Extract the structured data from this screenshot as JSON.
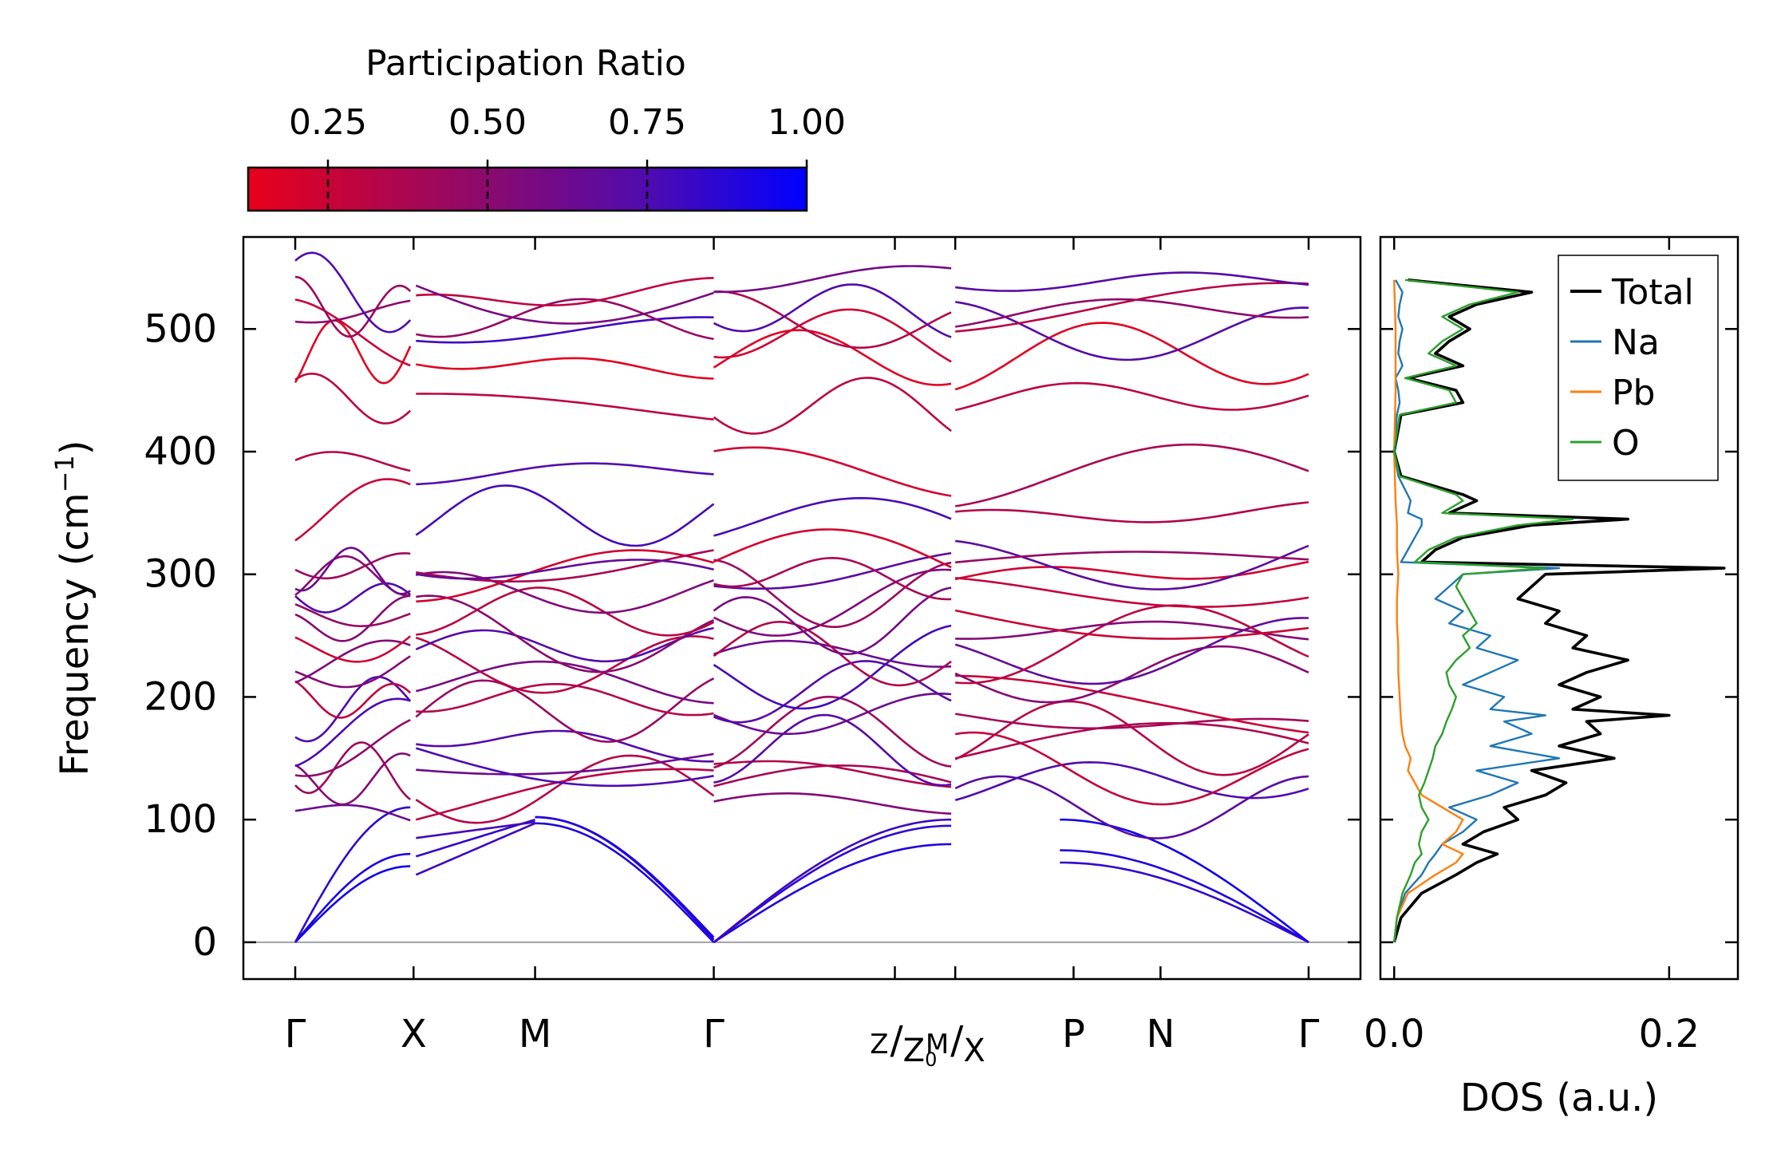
{
  "chart_data": [
    {
      "type": "line",
      "title": "",
      "xlabel": "",
      "ylabel": "Frequency (cm",
      "ylabel_unit_power": "−1",
      "ylabel_close": ")",
      "ylim": [
        -30,
        575
      ],
      "yticks": [
        0,
        100,
        200,
        300,
        400,
        500
      ],
      "ytick_labels": [
        "0",
        "100",
        "200",
        "300",
        "400",
        "500"
      ],
      "segments": [
        {
          "from": "Γ",
          "to": "X",
          "t0": 0.0,
          "t1": 0.143
        },
        {
          "from": "X",
          "to": "Γ",
          "via": "M",
          "t0": 0.15,
          "t1": 0.52
        },
        {
          "from": "Γ",
          "to": "Z/Z0",
          "t0": 0.52,
          "t1": 0.815
        },
        {
          "from": "M/X",
          "to": "Γ",
          "via": "P, N",
          "t0": 0.82,
          "t1": 1.0
        }
      ],
      "high_symmetry_points": [
        {
          "label": "Γ",
          "t": 0.0
        },
        {
          "label": "X",
          "t": 0.147
        },
        {
          "label": "M",
          "t": 0.298
        },
        {
          "label": "Γ",
          "t": 0.52
        },
        {
          "label": "Z",
          "sub": "Z",
          "sub_index": "0",
          "t": 0.745
        },
        {
          "label": "M",
          "sub": "X",
          "t": 0.82
        },
        {
          "label": "P",
          "t": 0.967
        },
        {
          "label": "N",
          "t": 1.075
        },
        {
          "label": "Γ",
          "t": 1.259
        }
      ],
      "colorbar": {
        "label": "Participation Ratio",
        "range": [
          0.125,
          1.0
        ],
        "ticks": [
          0.25,
          0.5,
          0.75,
          1.0
        ],
        "tick_labels": [
          "0.25",
          "0.50",
          "0.75",
          "1.00"
        ],
        "color_low": "#e8001b",
        "color_mid": "#8a0a6e",
        "color_high": "#0000ff"
      },
      "acoustic_branches_max_cm1": [
        62,
        72,
        110,
        97,
        100,
        98
      ],
      "optical_branch_band_centers_cm1": [
        110,
        128,
        145,
        158,
        170,
        185,
        200,
        215,
        228,
        240,
        255,
        270,
        285,
        296,
        305,
        310,
        345,
        380,
        442,
        475,
        500,
        510,
        520,
        537
      ]
    },
    {
      "type": "line",
      "xlabel": "DOS (a.u.)",
      "ylabel": "",
      "xlim": [
        -0.01,
        0.25
      ],
      "xticks": [
        0.0,
        0.2
      ],
      "xtick_labels": [
        "0.0",
        "0.2"
      ],
      "ylim": [
        -30,
        575
      ],
      "legend": {
        "position": "top-right"
      },
      "series": [
        {
          "name": "Total",
          "color": "#000000",
          "freq": [
            0,
            20,
            40,
            55,
            65,
            72,
            80,
            90,
            100,
            110,
            120,
            130,
            140,
            150,
            160,
            170,
            180,
            185,
            190,
            200,
            210,
            220,
            230,
            240,
            250,
            260,
            270,
            280,
            290,
            300,
            305,
            310,
            320,
            330,
            340,
            345,
            350,
            360,
            365,
            380,
            400,
            430,
            440,
            450,
            460,
            470,
            480,
            490,
            500,
            510,
            520,
            530,
            540
          ],
          "dos": [
            0,
            0.005,
            0.02,
            0.045,
            0.06,
            0.075,
            0.05,
            0.065,
            0.09,
            0.08,
            0.11,
            0.125,
            0.1,
            0.16,
            0.12,
            0.15,
            0.14,
            0.2,
            0.13,
            0.15,
            0.12,
            0.14,
            0.17,
            0.13,
            0.14,
            0.11,
            0.12,
            0.09,
            0.1,
            0.11,
            0.24,
            0.02,
            0.03,
            0.05,
            0.1,
            0.17,
            0.04,
            0.06,
            0.05,
            0.005,
            0.0,
            0.005,
            0.05,
            0.045,
            0.01,
            0.05,
            0.03,
            0.04,
            0.055,
            0.04,
            0.06,
            0.1,
            0.01
          ]
        },
        {
          "name": "Na",
          "color": "#1f77b4",
          "freq": [
            0,
            20,
            40,
            55,
            65,
            72,
            80,
            90,
            100,
            110,
            120,
            130,
            140,
            150,
            160,
            170,
            180,
            185,
            190,
            200,
            210,
            220,
            230,
            240,
            250,
            260,
            270,
            280,
            290,
            300,
            305,
            310,
            320,
            330,
            340,
            345,
            350,
            360,
            380,
            400,
            430,
            440,
            450,
            460,
            470,
            480,
            490,
            500,
            510,
            520,
            530,
            540
          ],
          "dos": [
            0,
            0.002,
            0.008,
            0.02,
            0.025,
            0.03,
            0.035,
            0.05,
            0.06,
            0.04,
            0.07,
            0.09,
            0.06,
            0.12,
            0.07,
            0.1,
            0.08,
            0.11,
            0.07,
            0.08,
            0.05,
            0.07,
            0.09,
            0.06,
            0.07,
            0.04,
            0.05,
            0.03,
            0.04,
            0.05,
            0.12,
            0.005,
            0.01,
            0.015,
            0.02,
            0.02,
            0.01,
            0.012,
            0.003,
            0.0,
            0.002,
            0.004,
            0.003,
            0.001,
            0.006,
            0.003,
            0.004,
            0.006,
            0.003,
            0.004,
            0.006,
            0.001
          ]
        },
        {
          "name": "Pb",
          "color": "#ff7f0e",
          "freq": [
            0,
            20,
            40,
            55,
            65,
            72,
            80,
            90,
            100,
            110,
            120,
            130,
            140,
            150,
            160,
            170,
            180,
            200,
            220,
            240,
            260,
            280,
            300,
            320,
            340,
            360,
            400,
            450,
            500,
            540
          ],
          "dos": [
            0,
            0.002,
            0.01,
            0.03,
            0.045,
            0.05,
            0.035,
            0.045,
            0.05,
            0.035,
            0.02,
            0.015,
            0.01,
            0.012,
            0.008,
            0.006,
            0.005,
            0.004,
            0.003,
            0.003,
            0.002,
            0.002,
            0.003,
            0.002,
            0.002,
            0.001,
            0.0,
            0.001,
            0.001,
            0.0
          ]
        },
        {
          "name": "O",
          "color": "#2ca02c",
          "freq": [
            0,
            20,
            40,
            55,
            65,
            72,
            80,
            90,
            100,
            110,
            120,
            130,
            140,
            150,
            160,
            170,
            180,
            190,
            200,
            210,
            220,
            230,
            240,
            250,
            260,
            270,
            280,
            290,
            300,
            305,
            310,
            320,
            330,
            340,
            345,
            350,
            360,
            365,
            380,
            400,
            430,
            440,
            450,
            460,
            470,
            480,
            490,
            500,
            510,
            520,
            530,
            540
          ],
          "dos": [
            0,
            0.002,
            0.006,
            0.012,
            0.015,
            0.02,
            0.018,
            0.02,
            0.025,
            0.02,
            0.018,
            0.022,
            0.025,
            0.028,
            0.03,
            0.035,
            0.038,
            0.042,
            0.045,
            0.04,
            0.038,
            0.045,
            0.055,
            0.05,
            0.06,
            0.055,
            0.05,
            0.045,
            0.05,
            0.11,
            0.015,
            0.025,
            0.045,
            0.09,
            0.13,
            0.035,
            0.05,
            0.045,
            0.004,
            0.0,
            0.004,
            0.045,
            0.04,
            0.008,
            0.045,
            0.025,
            0.035,
            0.05,
            0.035,
            0.055,
            0.09,
            0.008
          ]
        }
      ]
    }
  ]
}
